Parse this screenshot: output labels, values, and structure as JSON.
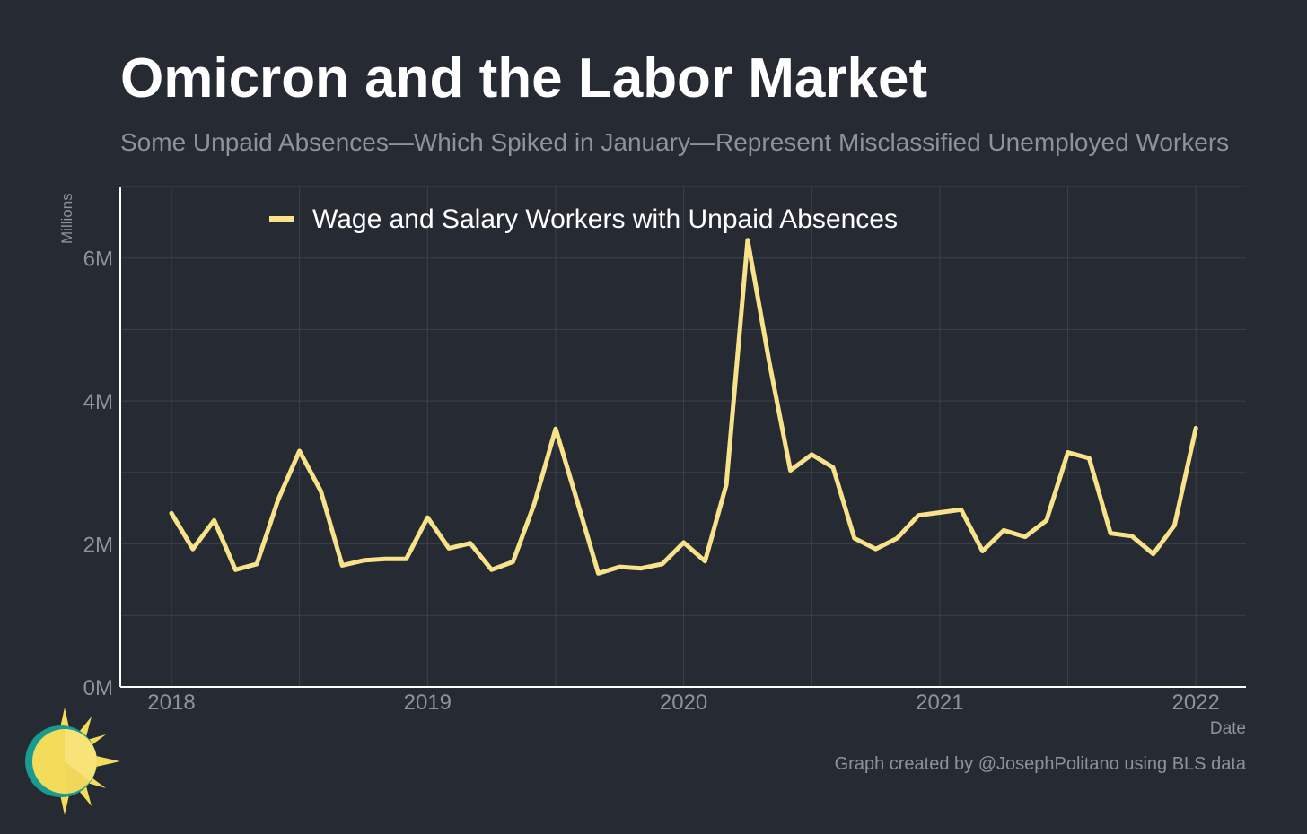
{
  "header": {
    "title": "Omicron and the Labor Market",
    "subtitle": "Some Unpaid Absences—Which Spiked in January—Represent Misclassified Unemployed Workers"
  },
  "footer": {
    "caption": "Graph created by @JosephPolitano using BLS data"
  },
  "colors": {
    "background": "#252a33",
    "line": "#f8e38a",
    "grid": "#3d424b",
    "axis": "#ffffff",
    "muted_text": "#8e939b"
  },
  "chart_data": {
    "type": "line",
    "title": "Omicron and the Labor Market",
    "subtitle": "Some Unpaid Absences—Which Spiked in January—Represent Misclassified Unemployed Workers",
    "xlabel": "Date",
    "ylabel": "Millions",
    "x_ticks": [
      "2018",
      "2019",
      "2020",
      "2021",
      "2022"
    ],
    "y_ticks": [
      "0M",
      "2M",
      "4M",
      "6M"
    ],
    "y_tick_values": [
      0,
      2,
      4,
      6
    ],
    "ylim": [
      0,
      7
    ],
    "grid": true,
    "legend": "top-left",
    "series": [
      {
        "name": "Wage and Salary Workers with Unpaid Absences",
        "color": "#f8e38a",
        "x": [
          "2018-01",
          "2018-02",
          "2018-03",
          "2018-04",
          "2018-05",
          "2018-06",
          "2018-07",
          "2018-08",
          "2018-09",
          "2018-10",
          "2018-11",
          "2018-12",
          "2019-01",
          "2019-02",
          "2019-03",
          "2019-04",
          "2019-05",
          "2019-06",
          "2019-07",
          "2019-08",
          "2019-09",
          "2019-10",
          "2019-11",
          "2019-12",
          "2020-01",
          "2020-02",
          "2020-03",
          "2020-04",
          "2020-05",
          "2020-06",
          "2020-07",
          "2020-08",
          "2020-09",
          "2020-10",
          "2020-11",
          "2020-12",
          "2021-01",
          "2021-02",
          "2021-03",
          "2021-04",
          "2021-05",
          "2021-06",
          "2021-07",
          "2021-08",
          "2021-09",
          "2021-10",
          "2021-11",
          "2021-12",
          "2022-01"
        ],
        "values": [
          2.43,
          1.93,
          2.33,
          1.64,
          1.72,
          2.62,
          3.3,
          2.74,
          1.7,
          1.77,
          1.79,
          1.79,
          2.37,
          1.94,
          2.01,
          1.64,
          1.75,
          2.56,
          3.61,
          2.61,
          1.59,
          1.68,
          1.66,
          1.72,
          2.02,
          1.76,
          2.83,
          6.25,
          4.56,
          3.03,
          3.25,
          3.07,
          2.08,
          1.93,
          2.08,
          2.4,
          2.44,
          2.48,
          1.9,
          2.19,
          2.1,
          2.33,
          3.28,
          3.2,
          2.15,
          2.11,
          1.86,
          2.26,
          3.62
        ]
      }
    ]
  }
}
